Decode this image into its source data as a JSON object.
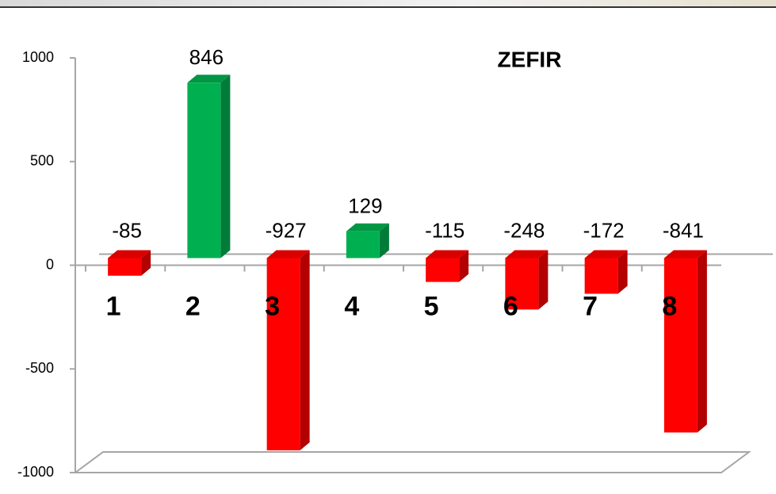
{
  "chart_data": {
    "type": "bar3d",
    "title": "ZEFIR",
    "categories": [
      "1",
      "2",
      "3",
      "4",
      "5",
      "6",
      "7",
      "8"
    ],
    "values": [
      -85,
      846,
      -927,
      129,
      -115,
      -248,
      -172,
      -841
    ],
    "color_positive": "#00b050",
    "color_negative": "#ff0000",
    "ylim": [
      -1000,
      1000
    ],
    "yticks": [
      -1000,
      -500,
      0,
      500,
      1000
    ]
  }
}
